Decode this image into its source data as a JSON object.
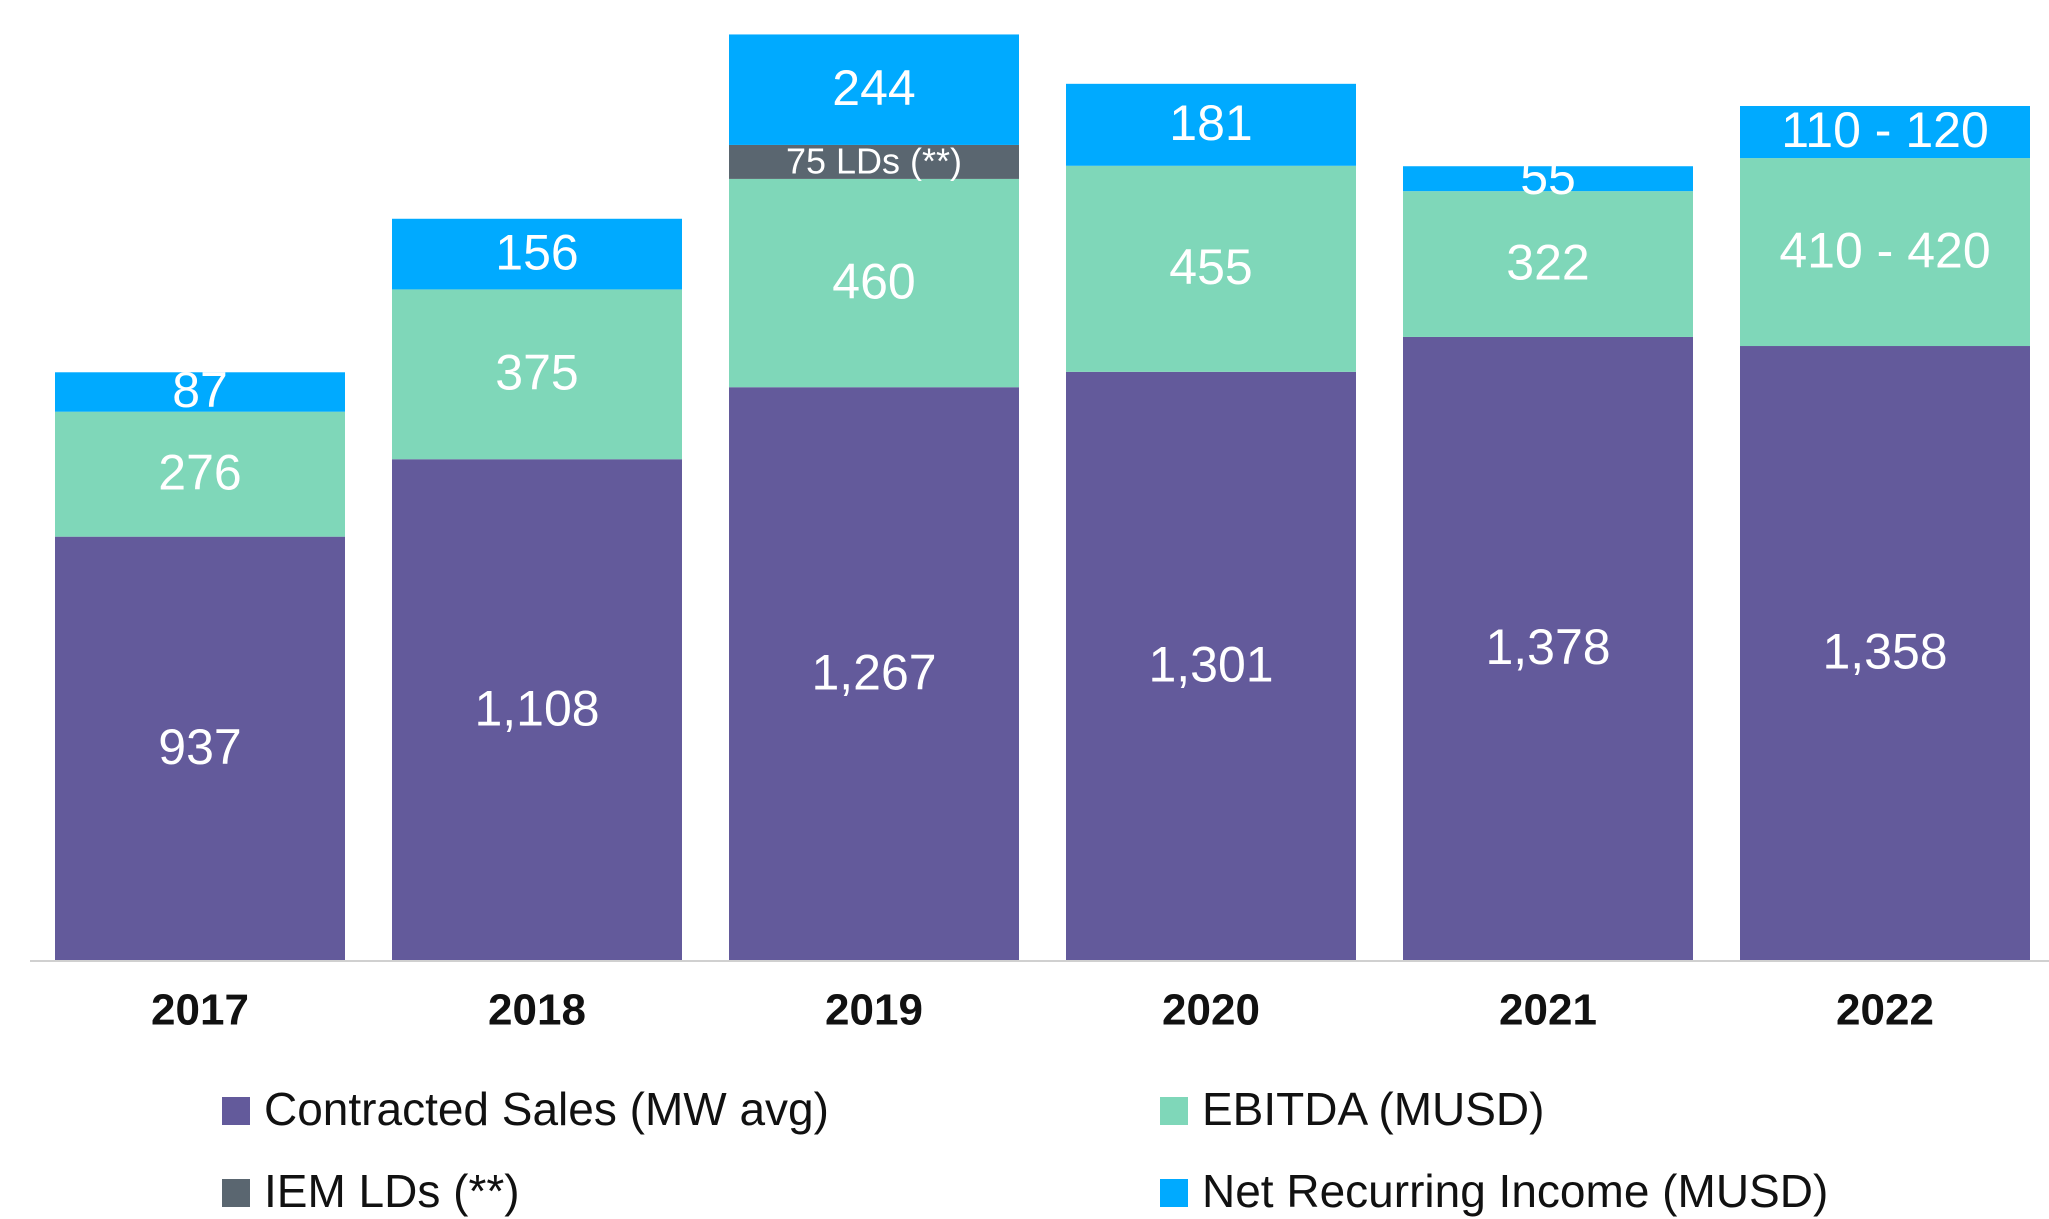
{
  "chart_data": {
    "type": "stacked_bar",
    "categories": [
      "2017",
      "2018",
      "2019",
      "2020",
      "2021",
      "2022"
    ],
    "series": [
      {
        "name": "Contracted Sales (MW avg)",
        "color": "#635a9b",
        "values": [
          937,
          1108,
          1267,
          1301,
          1378,
          1358
        ],
        "value_labels": [
          "937",
          "1,108",
          "1,267",
          "1,301",
          "1,378",
          "1,358"
        ]
      },
      {
        "name": "EBITDA (MUSD)",
        "color": "#7fd7b9",
        "values": [
          276,
          375,
          460,
          455,
          322,
          415
        ],
        "value_labels": [
          "276",
          "375",
          "460",
          "455",
          "322",
          "410 - 420"
        ]
      },
      {
        "name": "IEM LDs (**)",
        "color": "#5a6670",
        "values": [
          null,
          null,
          75,
          null,
          null,
          null
        ],
        "value_labels": [
          null,
          null,
          "75 LDs (**)",
          null,
          null,
          null
        ]
      },
      {
        "name": "Net Recurring Income (MUSD)",
        "color": "#00aaff",
        "values": [
          87,
          156,
          244,
          181,
          55,
          115
        ],
        "value_labels": [
          "87",
          "156",
          "244",
          "181",
          "55",
          "110 - 120"
        ]
      }
    ],
    "ylim": [
      0,
      2100
    ]
  }
}
